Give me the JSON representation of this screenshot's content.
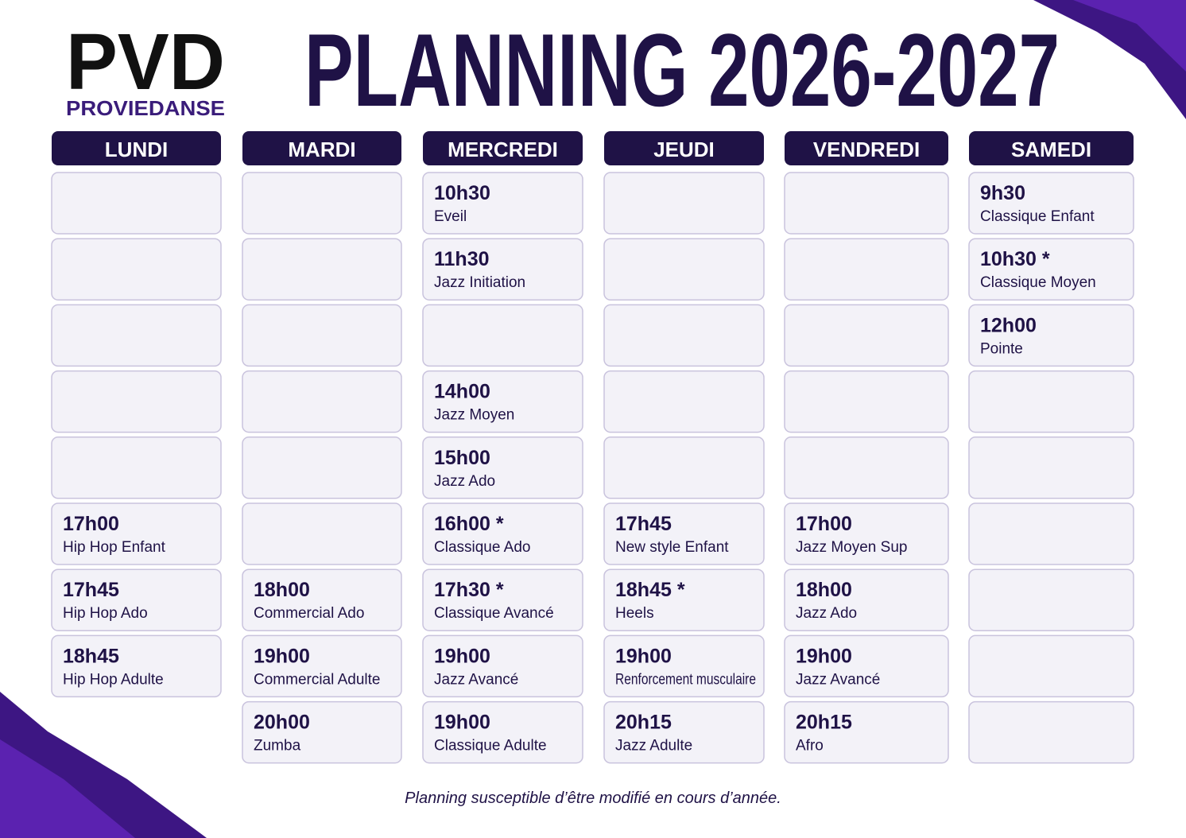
{
  "header": {
    "logo_mark": "PVD",
    "logo_text": "PROVIEDANSE",
    "title": "PLANNING 2026-2027"
  },
  "days": [
    {
      "name": "LUNDI",
      "slots": [
        null,
        null,
        null,
        null,
        null,
        {
          "time": "17h00",
          "class": "Hip Hop Enfant"
        },
        {
          "time": "17h45",
          "class": "Hip Hop Ado"
        },
        {
          "time": "18h45",
          "class": "Hip Hop Adulte"
        }
      ]
    },
    {
      "name": "MARDI",
      "slots": [
        null,
        null,
        null,
        null,
        null,
        null,
        {
          "time": "18h00",
          "class": "Commercial Ado"
        },
        {
          "time": "19h00",
          "class": "Commercial Adulte"
        },
        {
          "time": "20h00",
          "class": "Zumba"
        }
      ]
    },
    {
      "name": "MERCREDI",
      "slots": [
        {
          "time": "10h30",
          "class": "Eveil"
        },
        {
          "time": "11h30",
          "class": "Jazz Initiation"
        },
        null,
        {
          "time": "14h00",
          "class": "Jazz Moyen"
        },
        {
          "time": "15h00",
          "class": "Jazz Ado"
        },
        {
          "time": "16h00 *",
          "class": "Classique Ado"
        },
        {
          "time": "17h30 *",
          "class": "Classique Avancé"
        },
        {
          "time": "19h00",
          "class": "Jazz Avancé"
        },
        {
          "time": "19h00",
          "class": "Classique Adulte"
        }
      ]
    },
    {
      "name": "JEUDI",
      "slots": [
        null,
        null,
        null,
        null,
        null,
        {
          "time": "17h45",
          "class": "New style Enfant"
        },
        {
          "time": "18h45 *",
          "class": "Heels"
        },
        {
          "time": "19h00",
          "class": "Renforcement musculaire"
        },
        {
          "time": "20h15",
          "class": "Jazz Adulte"
        }
      ]
    },
    {
      "name": "VENDREDI",
      "slots": [
        null,
        null,
        null,
        null,
        null,
        {
          "time": "17h00",
          "class": "Jazz Moyen Sup"
        },
        {
          "time": "18h00",
          "class": "Jazz Ado"
        },
        {
          "time": "19h00",
          "class": "Jazz Avancé"
        },
        {
          "time": "20h15",
          "class": "Afro"
        }
      ]
    },
    {
      "name": "SAMEDI",
      "slots": [
        {
          "time": "9h30",
          "class": "Classique Enfant"
        },
        {
          "time": "10h30 *",
          "class": "Classique Moyen"
        },
        {
          "time": "12h00",
          "class": "Pointe"
        },
        null,
        null,
        null,
        null,
        null,
        null
      ]
    }
  ],
  "footer": {
    "note": "Planning susceptible d’être modifié en cours d’année."
  }
}
